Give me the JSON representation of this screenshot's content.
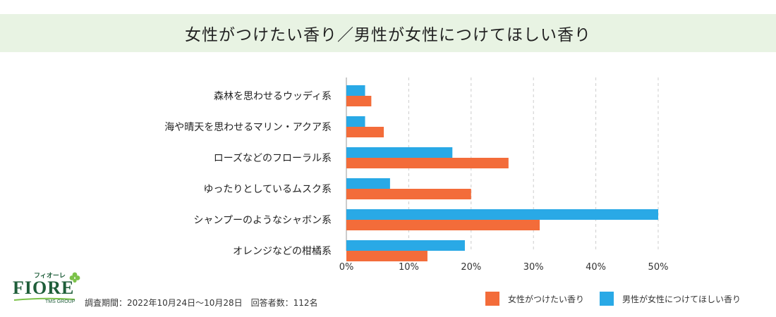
{
  "title": "女性がつけたい香り／男性が女性につけてほしい香り",
  "logo": {
    "kana": "フィオーレ",
    "name": "FIORE",
    "group": "TMS GROUP"
  },
  "footnote": "調査期間：2022年10月24日〜10月28日　回答者数：112名",
  "colors": {
    "female": "#f36c3a",
    "male": "#29a9e6",
    "band": "#e8f3e3",
    "grid": "#cccccc",
    "logo": "#1f5e3a",
    "leaf": "#7cc24a"
  },
  "chart_data": {
    "type": "bar",
    "orientation": "horizontal",
    "title": "女性がつけたい香り／男性が女性につけてほしい香り",
    "categories": [
      "森林を思わせるウッディ系",
      "海や晴天を思わせるマリン・アクア系",
      "ローズなどのフローラル系",
      "ゆったりとしているムスク系",
      "シャンプーのようなシャボン系",
      "オレンジなどの柑橘系"
    ],
    "series": [
      {
        "name": "男性が女性につけてほしい香り",
        "values": [
          3,
          3,
          17,
          7,
          50,
          19
        ]
      },
      {
        "name": "女性がつけたい香り",
        "values": [
          4,
          6,
          26,
          20,
          31,
          13
        ]
      }
    ],
    "xlim": [
      0,
      50
    ],
    "xticks": [
      "0%",
      "10%",
      "20%",
      "30%",
      "40%",
      "50%"
    ],
    "grid": true,
    "legend": "bottom-right"
  }
}
